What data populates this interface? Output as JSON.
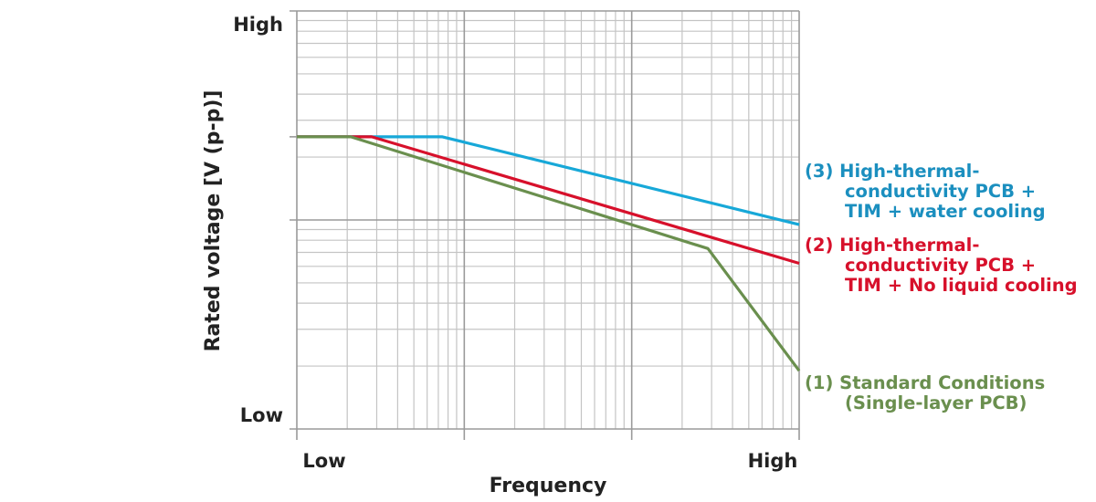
{
  "chart_data": {
    "type": "line",
    "x_scale": "log",
    "y_scale": "log",
    "xlim": [
      1,
      1000
    ],
    "ylim": [
      1,
      100
    ],
    "grid": true,
    "xlabel": "Frequency",
    "ylabel": "Rated voltage [V (p-p)]",
    "x_ticks": [
      {
        "value": 1,
        "label": "Low"
      },
      {
        "value": 1000,
        "label": "High"
      }
    ],
    "y_ticks": [
      {
        "value": 1,
        "label": "Low"
      },
      {
        "value": 100,
        "label": "High"
      }
    ],
    "series": [
      {
        "name": "(1) Standard Conditions (Single-layer PCB)",
        "label_lines": [
          "(1) Standard Conditions",
          "(Single-layer PCB)"
        ],
        "color": "#6a8f4e",
        "x": [
          1,
          2.1,
          285,
          1000
        ],
        "y": [
          25,
          25,
          7.3,
          1.9
        ]
      },
      {
        "name": "(2) High-thermal-conductivity PCB + TIM + No liquid cooling",
        "label_lines": [
          "(2) High-thermal-",
          "conductivity PCB +",
          "TIM + No liquid cooling"
        ],
        "color": "#d7102b",
        "x": [
          1,
          2.8,
          1000
        ],
        "y": [
          25,
          25,
          6.2
        ]
      },
      {
        "name": "(3) High-thermal-conductivity PCB + TIM + water cooling",
        "label_lines": [
          "(3) High-thermal-",
          "conductivity PCB +",
          "TIM + water cooling"
        ],
        "color": "#17a8d8",
        "x": [
          1,
          7.4,
          1000
        ],
        "y": [
          25,
          25,
          9.5
        ]
      }
    ]
  }
}
